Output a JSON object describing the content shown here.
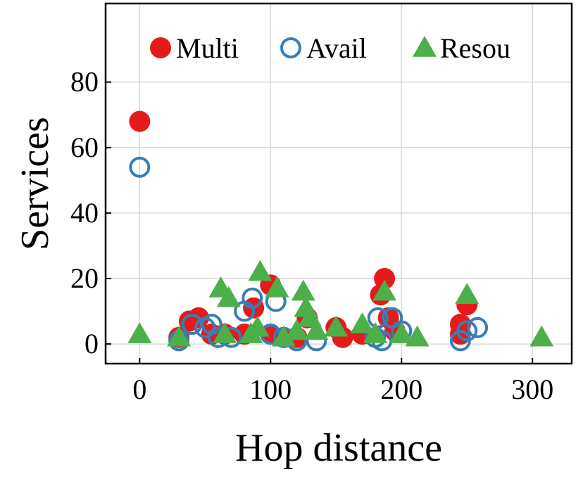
{
  "chart_data": {
    "type": "scatter",
    "xlabel": "Hop distance",
    "ylabel": "Services",
    "xlim": [
      -26,
      330
    ],
    "ylim": [
      -6,
      104
    ],
    "xticks": [
      0,
      100,
      200,
      300
    ],
    "yticks": [
      0,
      20,
      40,
      60,
      80
    ],
    "grid": true,
    "legend": "upper center",
    "series": [
      {
        "name": "Multi",
        "color": "#e41a1c",
        "marker": "circle",
        "x": [
          0,
          100,
          87,
          187,
          184,
          250,
          245,
          245,
          190,
          128,
          45,
          38,
          55,
          30,
          65,
          80,
          100,
          110,
          120,
          150,
          155,
          170,
          195
        ],
        "values": [
          68,
          18,
          11,
          20,
          15,
          12,
          6,
          3,
          8,
          8,
          8,
          7,
          3,
          2,
          3,
          3,
          3,
          2,
          2,
          5,
          2,
          3,
          4
        ]
      },
      {
        "name": "Avail",
        "color": "#377eb8",
        "marker": "ring",
        "x": [
          0,
          86,
          104,
          30,
          40,
          50,
          55,
          60,
          70,
          80,
          100,
          110,
          120,
          135,
          182,
          193,
          200,
          185,
          245,
          250,
          258,
          180
        ],
        "values": [
          54,
          14,
          13,
          1,
          6,
          5,
          6,
          2,
          2,
          10,
          3,
          2,
          1,
          1,
          8,
          8,
          4,
          1,
          1,
          4,
          5,
          2
        ]
      },
      {
        "name": "Resou",
        "color": "#4daf4a",
        "marker": "triangle",
        "x": [
          0,
          30,
          62,
          68,
          92,
          105,
          125,
          127,
          130,
          187,
          250,
          307,
          65,
          85,
          110,
          135,
          150,
          170,
          180,
          200,
          212,
          90,
          120
        ],
        "values": [
          3,
          2,
          17,
          14,
          22,
          17,
          16,
          11,
          8,
          16,
          15,
          2,
          3,
          3,
          2,
          4,
          5,
          6,
          3,
          3,
          2,
          5,
          4
        ]
      }
    ]
  }
}
